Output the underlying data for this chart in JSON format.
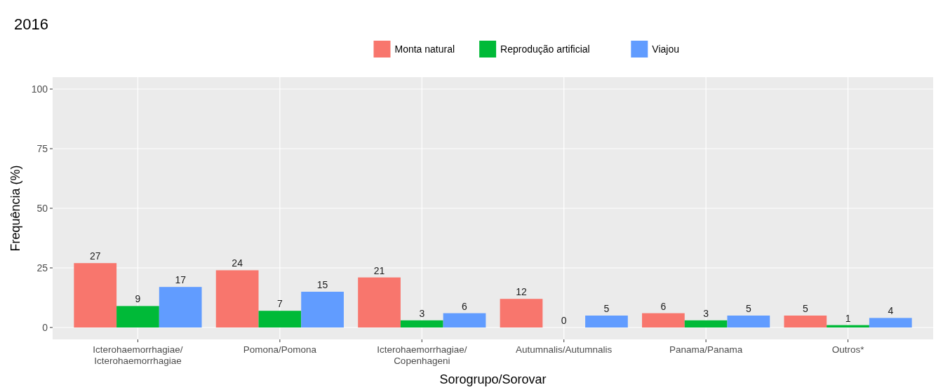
{
  "chart_data": {
    "type": "bar",
    "title": "2016",
    "xlabel": "Sorogrupo/Sorovar",
    "ylabel": "Frequência (%)",
    "categories": [
      "Icterohaemorrhagiae/\nIcterohaemorrhagiae",
      "Pomona/Pomona",
      "Icterohaemorrhagiae/\nCopenhageni",
      "Autumnalis/Autumnalis",
      "Panama/Panama",
      "Outros*"
    ],
    "series": [
      {
        "name": "Monta natural",
        "color": "#f8766d",
        "values": [
          27,
          24,
          21,
          12,
          6,
          5
        ]
      },
      {
        "name": "Reprodução artificial",
        "color": "#00ba38",
        "values": [
          9,
          7,
          3,
          0,
          3,
          1
        ]
      },
      {
        "name": "Viajou",
        "color": "#619cff",
        "values": [
          17,
          15,
          6,
          5,
          5,
          4
        ]
      }
    ],
    "ylim": [
      -5,
      105
    ],
    "yticks": [
      0,
      25,
      50,
      75,
      100
    ],
    "grid": true,
    "legend": "top",
    "data_labels": true
  }
}
